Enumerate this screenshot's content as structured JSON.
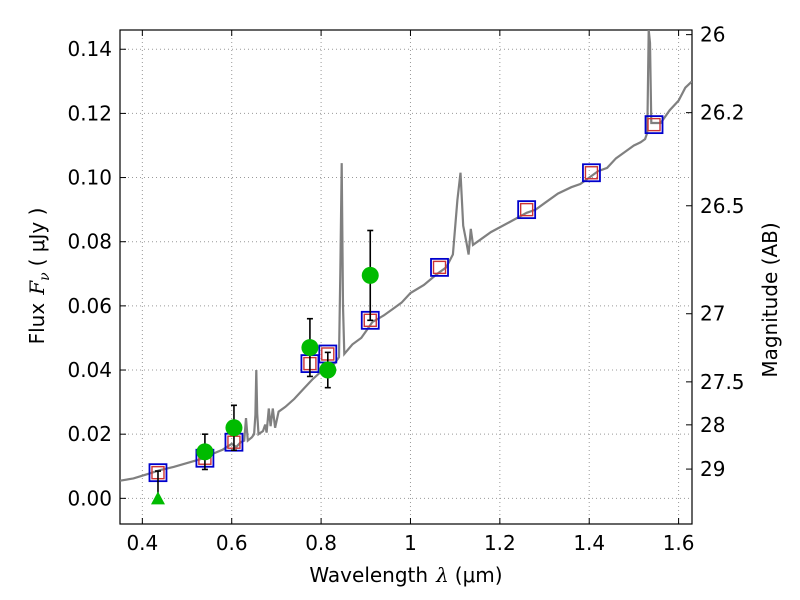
{
  "chart_data": {
    "type": "scatter",
    "xlabel_text": "Wavelength",
    "xlabel_symbol": "λ",
    "xlabel_unit": "(μm)",
    "ylabel_text": "Flux",
    "ylabel_symbol": "F",
    "ylabel_subscript": "ν",
    "ylabel_unit": "( μJy )",
    "y2label": "Magnitude (AB)",
    "xlim": [
      0.35,
      1.63
    ],
    "ylim": [
      -0.008,
      0.146
    ],
    "grid": true,
    "x_ticks": [
      {
        "value": 0.4,
        "label": "0.4"
      },
      {
        "value": 0.6,
        "label": "0.6"
      },
      {
        "value": 0.8,
        "label": "0.8"
      },
      {
        "value": 1.0,
        "label": "1"
      },
      {
        "value": 1.2,
        "label": "1.2"
      },
      {
        "value": 1.4,
        "label": "1.4"
      },
      {
        "value": 1.6,
        "label": "1.6"
      }
    ],
    "y_ticks": [
      {
        "value": 0.0,
        "label": "0.00"
      },
      {
        "value": 0.02,
        "label": "0.02"
      },
      {
        "value": 0.04,
        "label": "0.04"
      },
      {
        "value": 0.06,
        "label": "0.06"
      },
      {
        "value": 0.08,
        "label": "0.08"
      },
      {
        "value": 0.1,
        "label": "0.10"
      },
      {
        "value": 0.12,
        "label": "0.12"
      },
      {
        "value": 0.14,
        "label": "0.14"
      }
    ],
    "mag_ticks": [
      {
        "value": 26,
        "label": "26"
      },
      {
        "value": 26.2,
        "label": "26.2"
      },
      {
        "value": 26.5,
        "label": "26.5"
      },
      {
        "value": 27,
        "label": "27"
      },
      {
        "value": 27.5,
        "label": "27.5"
      },
      {
        "value": 28,
        "label": "28"
      },
      {
        "value": 29,
        "label": "29"
      }
    ],
    "colors": {
      "sed": "#808080",
      "model_box": "#0000cc",
      "model_inner": "#cc3333",
      "observed": "#00bb00",
      "errorbar": "#000000",
      "grid": "#999999"
    },
    "series": [
      {
        "name": "Model SED spectrum",
        "points": [
          [
            0.35,
            0.0055
          ],
          [
            0.38,
            0.0062
          ],
          [
            0.41,
            0.0075
          ],
          [
            0.44,
            0.0088
          ],
          [
            0.47,
            0.0098
          ],
          [
            0.5,
            0.011
          ],
          [
            0.53,
            0.0122
          ],
          [
            0.56,
            0.014
          ],
          [
            0.58,
            0.0152
          ],
          [
            0.6,
            0.017
          ],
          [
            0.61,
            0.016
          ],
          [
            0.62,
            0.0175
          ],
          [
            0.628,
            0.018
          ],
          [
            0.632,
            0.025
          ],
          [
            0.636,
            0.018
          ],
          [
            0.645,
            0.019
          ],
          [
            0.65,
            0.02
          ],
          [
            0.653,
            0.026
          ],
          [
            0.655,
            0.04
          ],
          [
            0.657,
            0.0265
          ],
          [
            0.66,
            0.02
          ],
          [
            0.67,
            0.021
          ],
          [
            0.675,
            0.023
          ],
          [
            0.678,
            0.0205
          ],
          [
            0.683,
            0.028
          ],
          [
            0.687,
            0.0225
          ],
          [
            0.692,
            0.028
          ],
          [
            0.697,
            0.022
          ],
          [
            0.705,
            0.027
          ],
          [
            0.72,
            0.0285
          ],
          [
            0.74,
            0.031
          ],
          [
            0.76,
            0.034
          ],
          [
            0.78,
            0.037
          ],
          [
            0.8,
            0.0395
          ],
          [
            0.82,
            0.041
          ],
          [
            0.83,
            0.042
          ],
          [
            0.84,
            0.044
          ],
          [
            0.843,
            0.07
          ],
          [
            0.846,
            0.1045
          ],
          [
            0.849,
            0.06
          ],
          [
            0.852,
            0.045
          ],
          [
            0.87,
            0.048
          ],
          [
            0.89,
            0.05
          ],
          [
            0.9,
            0.052
          ],
          [
            0.915,
            0.055
          ],
          [
            0.94,
            0.057
          ],
          [
            0.96,
            0.059
          ],
          [
            0.98,
            0.061
          ],
          [
            1.0,
            0.064
          ],
          [
            1.03,
            0.0665
          ],
          [
            1.06,
            0.07
          ],
          [
            1.08,
            0.072
          ],
          [
            1.095,
            0.076
          ],
          [
            1.105,
            0.093
          ],
          [
            1.112,
            0.1015
          ],
          [
            1.118,
            0.085
          ],
          [
            1.125,
            0.08
          ],
          [
            1.13,
            0.076
          ],
          [
            1.135,
            0.084
          ],
          [
            1.14,
            0.079
          ],
          [
            1.15,
            0.08
          ],
          [
            1.18,
            0.083
          ],
          [
            1.22,
            0.086
          ],
          [
            1.26,
            0.089
          ],
          [
            1.28,
            0.09
          ],
          [
            1.3,
            0.092
          ],
          [
            1.33,
            0.095
          ],
          [
            1.36,
            0.097
          ],
          [
            1.38,
            0.098
          ],
          [
            1.4,
            0.1
          ],
          [
            1.42,
            0.102
          ],
          [
            1.44,
            0.103
          ],
          [
            1.46,
            0.106
          ],
          [
            1.48,
            0.108
          ],
          [
            1.5,
            0.11
          ],
          [
            1.515,
            0.111
          ],
          [
            1.525,
            0.112
          ],
          [
            1.53,
            0.114
          ],
          [
            1.533,
            0.146
          ],
          [
            1.536,
            0.142
          ],
          [
            1.539,
            0.117
          ],
          [
            1.56,
            0.117
          ],
          [
            1.58,
            0.121
          ],
          [
            1.6,
            0.124
          ],
          [
            1.615,
            0.128
          ],
          [
            1.63,
            0.13
          ]
        ]
      },
      {
        "name": "Model photometry",
        "points": [
          [
            0.435,
            0.008
          ],
          [
            0.54,
            0.0125
          ],
          [
            0.605,
            0.0175
          ],
          [
            0.775,
            0.042
          ],
          [
            0.815,
            0.045
          ],
          [
            0.91,
            0.0555
          ],
          [
            1.065,
            0.072
          ],
          [
            1.26,
            0.09
          ],
          [
            1.405,
            0.1015
          ],
          [
            1.545,
            0.1165
          ]
        ]
      },
      {
        "name": "Observed photometry",
        "points": [
          {
            "x": 0.54,
            "y": 0.0145,
            "err_lo": 0.0055,
            "err_hi": 0.0055
          },
          {
            "x": 0.605,
            "y": 0.022,
            "err_lo": 0.007,
            "err_hi": 0.007
          },
          {
            "x": 0.775,
            "y": 0.047,
            "err_lo": 0.009,
            "err_hi": 0.009
          },
          {
            "x": 0.815,
            "y": 0.04,
            "err_lo": 0.0055,
            "err_hi": 0.0055
          },
          {
            "x": 0.91,
            "y": 0.0695,
            "err_lo": 0.014,
            "err_hi": 0.014
          }
        ]
      },
      {
        "name": "Upper limit",
        "points": [
          {
            "x": 0.435,
            "y": 0.0,
            "err_hi": 0.0085
          }
        ]
      }
    ]
  }
}
